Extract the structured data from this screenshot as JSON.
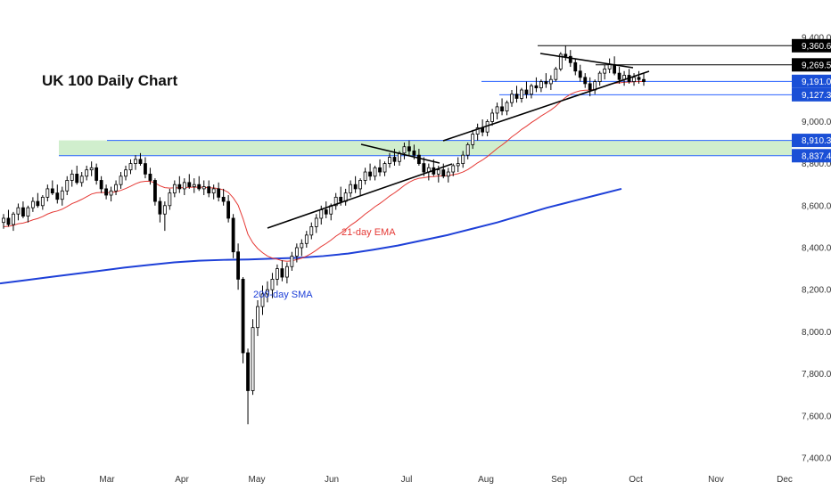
{
  "chart_data": {
    "type": "candlestick",
    "title": "UK 100 Daily Chart",
    "y_axis": {
      "ticks": [
        "9,400.0",
        "9,200.0",
        "9,000.0",
        "8,800.0",
        "8,600.0",
        "8,400.0",
        "8,200.0",
        "8,000.0",
        "7,800.0",
        "7,600.0",
        "7,400.0"
      ],
      "tick_values": [
        9400,
        9200,
        9000,
        8800,
        8600,
        8400,
        8200,
        8000,
        7800,
        7600,
        7400
      ],
      "range": [
        7370,
        9500
      ]
    },
    "x_axis": {
      "ticks": [
        "Feb",
        "Mar",
        "Apr",
        "May",
        "Jun",
        "Jul",
        "Aug",
        "Sep",
        "Oct",
        "Nov",
        "Dec"
      ]
    },
    "price_levels": [
      {
        "label": "9,360.6",
        "value": 9360.6,
        "badge_color": "#000000",
        "line_color": "#000000"
      },
      {
        "label": "9,269.5",
        "value": 9269.5,
        "badge_color": "#000000",
        "line_color": "#000000"
      },
      {
        "label": "9,191.0",
        "value": 9191.0,
        "badge_color": "#1a4fd6",
        "line_color": "#2962ff"
      },
      {
        "label": "9,127.3",
        "value": 9127.3,
        "badge_color": "#1a4fd6",
        "line_color": "#2962ff"
      },
      {
        "label": "8,910.3",
        "value": 8910.3,
        "badge_color": "#1a4fd6",
        "line_color": "#2962ff"
      },
      {
        "label": "8,837.4",
        "value": 8837.4,
        "badge_color": "#1a4fd6",
        "line_color": "#2962ff"
      }
    ],
    "zone": {
      "low": 8837.4,
      "high": 8910.3,
      "color": "#c8ebc4"
    },
    "indicators": [
      {
        "label": "21-day EMA",
        "color": "#e53935"
      },
      {
        "label": "200-day SMA",
        "color": "#1e40d8"
      }
    ],
    "candles_ohlc": [
      [
        8520,
        8560,
        8490,
        8540
      ],
      [
        8540,
        8580,
        8500,
        8510
      ],
      [
        8510,
        8570,
        8480,
        8560
      ],
      [
        8560,
        8610,
        8530,
        8590
      ],
      [
        8590,
        8620,
        8540,
        8550
      ],
      [
        8550,
        8600,
        8520,
        8590
      ],
      [
        8590,
        8640,
        8570,
        8620
      ],
      [
        8620,
        8660,
        8590,
        8600
      ],
      [
        8600,
        8650,
        8580,
        8640
      ],
      [
        8640,
        8700,
        8620,
        8680
      ],
      [
        8680,
        8720,
        8650,
        8660
      ],
      [
        8660,
        8700,
        8610,
        8630
      ],
      [
        8630,
        8690,
        8600,
        8670
      ],
      [
        8670,
        8740,
        8650,
        8720
      ],
      [
        8720,
        8770,
        8690,
        8750
      ],
      [
        8750,
        8790,
        8700,
        8710
      ],
      [
        8710,
        8760,
        8690,
        8740
      ],
      [
        8740,
        8790,
        8720,
        8770
      ],
      [
        8770,
        8810,
        8740,
        8780
      ],
      [
        8780,
        8800,
        8700,
        8720
      ],
      [
        8720,
        8740,
        8660,
        8680
      ],
      [
        8680,
        8700,
        8630,
        8650
      ],
      [
        8650,
        8690,
        8620,
        8670
      ],
      [
        8670,
        8720,
        8650,
        8700
      ],
      [
        8700,
        8760,
        8680,
        8740
      ],
      [
        8740,
        8790,
        8720,
        8770
      ],
      [
        8770,
        8820,
        8750,
        8800
      ],
      [
        8800,
        8840,
        8770,
        8820
      ],
      [
        8820,
        8850,
        8790,
        8800
      ],
      [
        8800,
        8830,
        8730,
        8750
      ],
      [
        8750,
        8780,
        8700,
        8720
      ],
      [
        8720,
        8730,
        8600,
        8620
      ],
      [
        8620,
        8640,
        8520,
        8560
      ],
      [
        8560,
        8620,
        8480,
        8600
      ],
      [
        8600,
        8680,
        8580,
        8660
      ],
      [
        8660,
        8720,
        8640,
        8700
      ],
      [
        8700,
        8740,
        8660,
        8680
      ],
      [
        8680,
        8730,
        8650,
        8710
      ],
      [
        8710,
        8750,
        8680,
        8690
      ],
      [
        8690,
        8730,
        8660,
        8700
      ],
      [
        8700,
        8740,
        8670,
        8680
      ],
      [
        8680,
        8720,
        8650,
        8690
      ],
      [
        8690,
        8720,
        8640,
        8660
      ],
      [
        8660,
        8700,
        8630,
        8680
      ],
      [
        8680,
        8710,
        8620,
        8640
      ],
      [
        8640,
        8680,
        8600,
        8620
      ],
      [
        8620,
        8650,
        8520,
        8540
      ],
      [
        8540,
        8560,
        8350,
        8380
      ],
      [
        8380,
        8420,
        8200,
        8250
      ],
      [
        8250,
        8260,
        7850,
        7900
      ],
      [
        7900,
        7920,
        7560,
        7720
      ],
      [
        7720,
        8060,
        7700,
        8020
      ],
      [
        8020,
        8150,
        7980,
        8120
      ],
      [
        8120,
        8220,
        8080,
        8180
      ],
      [
        8180,
        8240,
        8140,
        8200
      ],
      [
        8200,
        8280,
        8160,
        8250
      ],
      [
        8250,
        8320,
        8220,
        8300
      ],
      [
        8300,
        8340,
        8240,
        8260
      ],
      [
        8260,
        8330,
        8230,
        8310
      ],
      [
        8310,
        8380,
        8290,
        8360
      ],
      [
        8360,
        8420,
        8330,
        8400
      ],
      [
        8400,
        8440,
        8360,
        8420
      ],
      [
        8420,
        8480,
        8400,
        8460
      ],
      [
        8460,
        8520,
        8440,
        8500
      ],
      [
        8500,
        8560,
        8470,
        8540
      ],
      [
        8540,
        8600,
        8510,
        8580
      ],
      [
        8580,
        8620,
        8540,
        8560
      ],
      [
        8560,
        8610,
        8530,
        8600
      ],
      [
        8600,
        8660,
        8580,
        8640
      ],
      [
        8640,
        8690,
        8600,
        8620
      ],
      [
        8620,
        8680,
        8600,
        8660
      ],
      [
        8660,
        8720,
        8640,
        8700
      ],
      [
        8700,
        8740,
        8660,
        8680
      ],
      [
        8680,
        8730,
        8650,
        8720
      ],
      [
        8720,
        8780,
        8700,
        8760
      ],
      [
        8760,
        8800,
        8720,
        8740
      ],
      [
        8740,
        8790,
        8720,
        8780
      ],
      [
        8780,
        8820,
        8740,
        8760
      ],
      [
        8760,
        8810,
        8740,
        8800
      ],
      [
        8800,
        8850,
        8780,
        8830
      ],
      [
        8830,
        8870,
        8790,
        8810
      ],
      [
        8810,
        8860,
        8790,
        8850
      ],
      [
        8850,
        8900,
        8820,
        8880
      ],
      [
        8880,
        8910,
        8840,
        8860
      ],
      [
        8860,
        8890,
        8820,
        8840
      ],
      [
        8840,
        8870,
        8790,
        8800
      ],
      [
        8800,
        8830,
        8740,
        8760
      ],
      [
        8760,
        8800,
        8720,
        8780
      ],
      [
        8780,
        8820,
        8740,
        8750
      ],
      [
        8750,
        8790,
        8710,
        8770
      ],
      [
        8770,
        8800,
        8730,
        8740
      ],
      [
        8740,
        8780,
        8710,
        8760
      ],
      [
        8760,
        8800,
        8740,
        8790
      ],
      [
        8790,
        8830,
        8760,
        8800
      ],
      [
        8800,
        8860,
        8780,
        8840
      ],
      [
        8840,
        8900,
        8820,
        8890
      ],
      [
        8890,
        8960,
        8870,
        8940
      ],
      [
        8940,
        8990,
        8910,
        8970
      ],
      [
        8970,
        9010,
        8930,
        8950
      ],
      [
        8950,
        9010,
        8930,
        9000
      ],
      [
        9000,
        9060,
        8980,
        9040
      ],
      [
        9040,
        9090,
        9010,
        9070
      ],
      [
        9070,
        9110,
        9030,
        9050
      ],
      [
        9050,
        9100,
        9030,
        9090
      ],
      [
        9090,
        9150,
        9070,
        9130
      ],
      [
        9130,
        9170,
        9090,
        9110
      ],
      [
        9110,
        9160,
        9090,
        9150
      ],
      [
        9150,
        9190,
        9110,
        9130
      ],
      [
        9130,
        9180,
        9110,
        9170
      ],
      [
        9170,
        9210,
        9140,
        9160
      ],
      [
        9160,
        9200,
        9140,
        9190
      ],
      [
        9190,
        9230,
        9160,
        9180
      ],
      [
        9180,
        9220,
        9150,
        9200
      ],
      [
        9200,
        9260,
        9190,
        9250
      ],
      [
        9250,
        9330,
        9240,
        9320
      ],
      [
        9320,
        9360,
        9290,
        9310
      ],
      [
        9310,
        9340,
        9260,
        9280
      ],
      [
        9280,
        9300,
        9220,
        9240
      ],
      [
        9240,
        9270,
        9190,
        9210
      ],
      [
        9210,
        9230,
        9160,
        9180
      ],
      [
        9180,
        9210,
        9120,
        9150
      ],
      [
        9150,
        9200,
        9130,
        9190
      ],
      [
        9190,
        9240,
        9170,
        9230
      ],
      [
        9230,
        9270,
        9200,
        9250
      ],
      [
        9250,
        9300,
        9230,
        9270
      ],
      [
        9270,
        9310,
        9220,
        9230
      ],
      [
        9230,
        9260,
        9180,
        9200
      ],
      [
        9200,
        9240,
        9170,
        9220
      ],
      [
        9220,
        9250,
        9180,
        9190
      ],
      [
        9190,
        9230,
        9170,
        9210
      ],
      [
        9210,
        9240,
        9180,
        9200
      ],
      [
        9200,
        9230,
        9170,
        9190
      ]
    ]
  }
}
